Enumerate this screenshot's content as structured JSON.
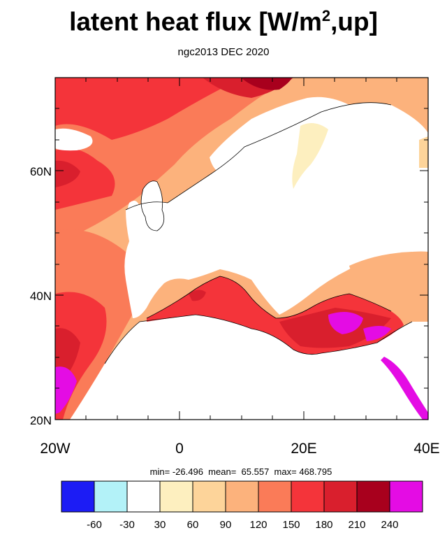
{
  "title": {
    "main": "latent heat flux [W/m",
    "sup": "2",
    "tail": ",up]"
  },
  "subtitle": "ngc2013 DEC 2020",
  "stats": {
    "min_label": "min=",
    "min": "-26.496",
    "mean_label": "mean=",
    "mean": "65.557",
    "max_label": "max=",
    "max": "468.795"
  },
  "axes": {
    "x_ticks": [
      "20W",
      "0",
      "20E",
      "40E"
    ],
    "y_ticks": [
      "60N",
      "40N",
      "20N"
    ],
    "lon_range": [
      -20,
      40
    ],
    "lat_range": [
      20,
      75
    ]
  },
  "colorbar": {
    "colors": [
      "#1c1cf5",
      "#b3f2f8",
      "#ffffff",
      "#fdefbf",
      "#fdd49a",
      "#fcb27c",
      "#fa7b58",
      "#f4343a",
      "#d91f2d",
      "#a8001d",
      "#e40ce4"
    ],
    "labels": [
      "-60",
      "-30",
      "30",
      "60",
      "90",
      "120",
      "150",
      "180",
      "210",
      "240"
    ]
  }
}
